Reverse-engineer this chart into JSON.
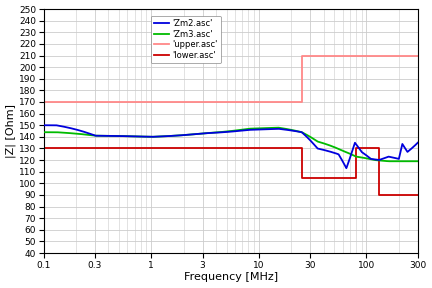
{
  "xlabel": "Frequency [MHz]",
  "ylabel": "|Z| [Ohm]",
  "xmin": 0.1,
  "xmax": 300,
  "ymin": 40,
  "ymax": 250,
  "yticks": [
    40,
    50,
    60,
    70,
    80,
    90,
    100,
    110,
    120,
    130,
    140,
    150,
    160,
    170,
    180,
    190,
    200,
    210,
    220,
    230,
    240,
    250
  ],
  "xtick_positions": [
    0.1,
    0.3,
    1,
    3,
    10,
    30,
    100,
    300
  ],
  "xtick_labels": [
    "0.1",
    "0.3",
    "1",
    "3",
    "10",
    "30",
    "100",
    "300"
  ],
  "xtick_minor": [
    0.2,
    0.4,
    0.5,
    0.6,
    0.7,
    0.8,
    0.9,
    2,
    4,
    5,
    6,
    7,
    8,
    9,
    20,
    40,
    50,
    60,
    70,
    80,
    90,
    200
  ],
  "legend_labels": [
    "'Zm2.asc'",
    "'Zm3.asc'",
    "'upper.asc'",
    "'lower.asc'"
  ],
  "zm2_color": "#0000dd",
  "zm3_color": "#00bb00",
  "upper_color": "#ff8888",
  "lower_color": "#cc0000",
  "background": "#ffffff",
  "grid_color": "#cccccc",
  "upper_steps_x": [
    0.1,
    25,
    25,
    80,
    80,
    300
  ],
  "upper_steps_y": [
    170,
    170,
    210,
    210,
    210,
    210
  ],
  "lower_steps_x": [
    0.1,
    25,
    25,
    80,
    80,
    130,
    130,
    300
  ],
  "lower_steps_y": [
    130,
    130,
    105,
    105,
    130,
    130,
    90,
    90
  ]
}
